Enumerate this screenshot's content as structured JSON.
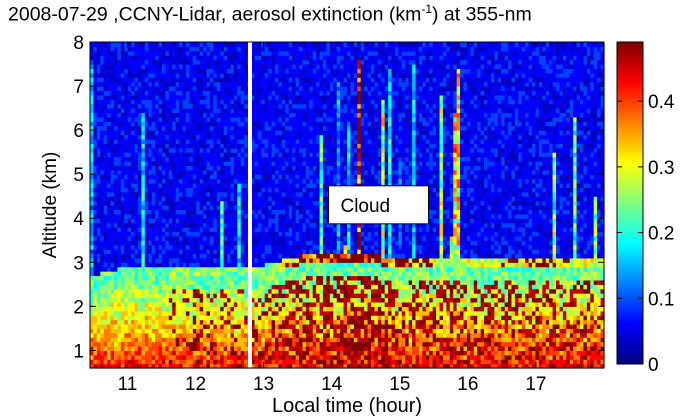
{
  "chart_data": {
    "type": "heatmap",
    "title": {
      "prefix": "2008-07-29 ,CCNY-Lidar, aerosol extinction (km",
      "superscript": "-1",
      "suffix": ") at 355-nm"
    },
    "xlabel": "Local time (hour)",
    "ylabel": "Altitude (km)",
    "x_ticks": [
      11,
      12,
      13,
      14,
      15,
      16,
      17
    ],
    "y_ticks": [
      1,
      2,
      3,
      4,
      5,
      6,
      7,
      8
    ],
    "xlim": [
      10.45,
      18.0
    ],
    "ylim": [
      0.6,
      8.0
    ],
    "colorbar": {
      "ticks": [
        "0",
        "0.1",
        "0.2",
        "0.3",
        "0.4"
      ],
      "tick_values": [
        0,
        0.1,
        0.2,
        0.3,
        0.4
      ],
      "range": [
        0,
        0.49
      ],
      "colormap": "jet"
    },
    "annotation": {
      "text": "Cloud",
      "x": 14.1,
      "y": 4.1
    },
    "data_gap_time": 12.8,
    "boundary_layer": [
      {
        "x": 10.5,
        "top": 2.5,
        "cloud": 0
      },
      {
        "x": 11.0,
        "top": 2.7,
        "cloud": 0
      },
      {
        "x": 11.5,
        "top": 2.75,
        "cloud": 0.05
      },
      {
        "x": 12.0,
        "top": 2.7,
        "cloud": 0.1
      },
      {
        "x": 12.5,
        "top": 2.7,
        "cloud": 0.05
      },
      {
        "x": 13.0,
        "top": 2.75,
        "cloud": 0.1
      },
      {
        "x": 13.5,
        "top": 2.95,
        "cloud": 0.45
      },
      {
        "x": 14.0,
        "top": 3.0,
        "cloud": 0.6
      },
      {
        "x": 14.5,
        "top": 3.0,
        "cloud": 0.8
      },
      {
        "x": 15.0,
        "top": 2.9,
        "cloud": 0.4
      },
      {
        "x": 15.5,
        "top": 2.95,
        "cloud": 0.3
      },
      {
        "x": 16.0,
        "top": 2.9,
        "cloud": 0.25
      },
      {
        "x": 16.5,
        "top": 2.85,
        "cloud": 0.3
      },
      {
        "x": 17.0,
        "top": 2.9,
        "cloud": 0.35
      },
      {
        "x": 17.5,
        "top": 2.9,
        "cloud": 0.3
      },
      {
        "x": 18.0,
        "top": 2.95,
        "cloud": 0.25
      }
    ]
  }
}
